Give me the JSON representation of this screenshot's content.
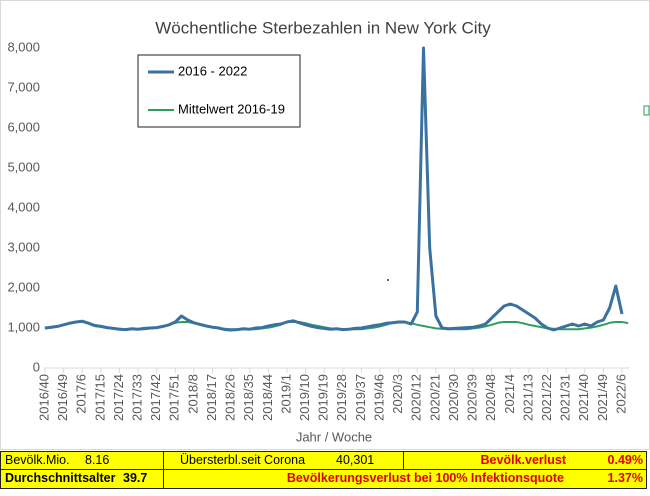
{
  "chart_data": {
    "type": "line",
    "title": "Wöchentliche Sterbezahlen in New York City",
    "x_label": "Jahr / Woche",
    "categories": [
      "2016/40",
      null,
      null,
      "2016/49",
      null,
      null,
      "2017/6",
      null,
      null,
      "2017/15",
      null,
      null,
      "2017/24",
      null,
      null,
      "2017/33",
      null,
      null,
      "2017/42",
      null,
      null,
      "2017/51",
      null,
      null,
      "2018/8",
      null,
      null,
      "2018/17",
      null,
      null,
      "2018/26",
      null,
      null,
      "2018/35",
      null,
      null,
      "2018/44",
      null,
      null,
      "2019/1",
      null,
      null,
      "2019/10",
      null,
      null,
      "2019/19",
      null,
      null,
      "2019/28",
      null,
      null,
      "2019/37",
      null,
      null,
      "2019/46",
      null,
      null,
      "2020/3",
      null,
      null,
      "2020/12",
      null,
      null,
      "2020/21",
      null,
      null,
      "2020/30",
      null,
      null,
      "2020/39",
      null,
      null,
      "2020/48",
      null,
      null,
      "2021/4",
      null,
      null,
      "2021/13",
      null,
      null,
      "2021/22",
      null,
      null,
      "2021/31",
      null,
      null,
      "2021/40",
      null,
      null,
      "2021/49",
      null,
      null,
      "2022/6",
      null
    ],
    "series": [
      {
        "name": "2016 - 2022",
        "color": "#3a71a0",
        "width": 3,
        "values": [
          1000,
          1020,
          1040,
          1080,
          1120,
          1150,
          1170,
          1120,
          1060,
          1040,
          1010,
          990,
          970,
          960,
          980,
          970,
          990,
          1000,
          1010,
          1040,
          1080,
          1150,
          1300,
          1200,
          1130,
          1090,
          1050,
          1020,
          1000,
          960,
          950,
          960,
          980,
          970,
          1000,
          1010,
          1050,
          1080,
          1100,
          1150,
          1180,
          1130,
          1080,
          1040,
          1010,
          990,
          970,
          980,
          960,
          970,
          990,
          1000,
          1030,
          1060,
          1080,
          1120,
          1130,
          1150,
          1150,
          1100,
          1400,
          8000,
          3000,
          1300,
          1000,
          980,
          990,
          1000,
          1010,
          1020,
          1050,
          1100,
          1250,
          1400,
          1550,
          1600,
          1550,
          1450,
          1350,
          1250,
          1100,
          1000,
          950,
          1000,
          1050,
          1100,
          1050,
          1100,
          1050,
          1150,
          1200,
          1500,
          2050,
          1350,
          null
        ]
      },
      {
        "name": "Mittelwert 2016-19",
        "color": "#2e9e5b",
        "width": 2,
        "values": [
          990,
          1010,
          1040,
          1080,
          1130,
          1150,
          1150,
          1120,
          1080,
          1050,
          1020,
          990,
          980,
          970,
          970,
          970,
          970,
          990,
          1010,
          1040,
          1080,
          1130,
          1150,
          1150,
          1120,
          1080,
          1050,
          1020,
          990,
          980,
          970,
          970,
          970,
          970,
          970,
          990,
          1010,
          1040,
          1080,
          1150,
          1150,
          1150,
          1120,
          1080,
          1050,
          1020,
          990,
          980,
          970,
          970,
          970,
          970,
          990,
          1010,
          1040,
          1080,
          1130,
          1150,
          1150,
          1120,
          1080,
          1050,
          1020,
          990,
          980,
          970,
          970,
          970,
          970,
          990,
          1010,
          1040,
          1080,
          1130,
          1150,
          1150,
          1150,
          1120,
          1080,
          1050,
          1020,
          990,
          980,
          970,
          970,
          970,
          970,
          990,
          1010,
          1040,
          1080,
          1130,
          1150,
          1150,
          1120
        ]
      }
    ],
    "ylim": [
      0,
      8000
    ],
    "yticks": [
      0,
      {
        "value": 1000,
        "label": "1,000"
      },
      {
        "value": 2000,
        "label": "2,000"
      },
      {
        "value": 3000,
        "label": "3,000"
      },
      {
        "value": 4000,
        "label": "4,000"
      },
      {
        "value": 5000,
        "label": "5,000"
      },
      {
        "value": 6000,
        "label": "6,000"
      },
      {
        "value": 7000,
        "label": "7,000"
      },
      {
        "value": 8000,
        "label": "8,000"
      }
    ],
    "grid": false,
    "legend": "upper left"
  },
  "table": {
    "rows": [
      [
        "Bevölk.Mio.",
        "8.16",
        "Übersterbl.seit Corona",
        "40,301",
        "Bevölk.verlust",
        "0.49%"
      ],
      [
        "Durchschnittsalter",
        "39.7",
        "Bevölkerungsverlust bei 100% Infektionsquote",
        "1.37%"
      ]
    ]
  }
}
